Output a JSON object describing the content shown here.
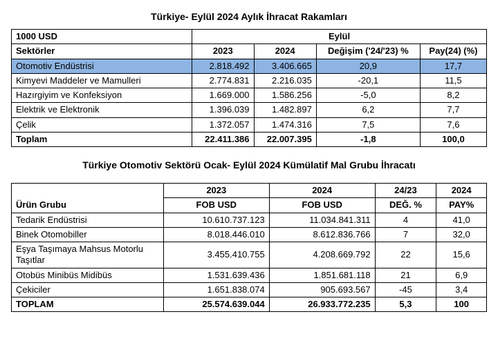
{
  "table1": {
    "title": "Türkiye- Eylül 2024 Aylık İhracat Rakamları",
    "unit_label": "1000 USD",
    "month_header": "Eylül",
    "sector_label": "Sektörler",
    "col_2023": "2023",
    "col_2024": "2024",
    "col_change": "Değişim ('24/'23) %",
    "col_share": "Pay(24) (%)",
    "rows": [
      {
        "name": "Otomotiv Endüstrisi",
        "v2023": "2.818.492",
        "v2024": "3.406.665",
        "chg": "20,9",
        "share": "17,7",
        "highlight": true
      },
      {
        "name": "Kimyevi Maddeler ve Mamulleri",
        "v2023": "2.774.831",
        "v2024": "2.216.035",
        "chg": "-20,1",
        "share": "11,5"
      },
      {
        "name": "Hazırgiyim ve Konfeksiyon",
        "v2023": "1.669.000",
        "v2024": "1.586.256",
        "chg": "-5,0",
        "share": "8,2"
      },
      {
        "name": "Elektrik ve Elektronik",
        "v2023": "1.396.039",
        "v2024": "1.482.897",
        "chg": "6,2",
        "share": "7,7"
      },
      {
        "name": "Çelik",
        "v2023": "1.372.057",
        "v2024": "1.474.316",
        "chg": "7,5",
        "share": "7,6"
      }
    ],
    "total": {
      "name": "Toplam",
      "v2023": "22.411.386",
      "v2024": "22.007.395",
      "chg": "-1,8",
      "share": "100,0"
    }
  },
  "table2": {
    "title": "Türkiye Otomotiv Sektörü Ocak- Eylül 2024 Kümülatif Mal Grubu İhracatı",
    "group_label": "Ürün Grubu",
    "col_2023_top": "2023",
    "col_2023_sub": "FOB USD",
    "col_2024_top": "2024",
    "col_2024_sub": "FOB USD",
    "col_change_top": "24/23",
    "col_change_sub": "DEĞ. %",
    "col_share_top": "2024",
    "col_share_sub": "PAY%",
    "rows": [
      {
        "name": "Tedarik Endüstrisi",
        "v2023": "10.610.737.123",
        "v2024": "11.034.841.311",
        "chg": "4",
        "share": "41,0"
      },
      {
        "name": "Binek Otomobiller",
        "v2023": "8.018.446.010",
        "v2024": "8.612.836.766",
        "chg": "7",
        "share": "32,0"
      },
      {
        "name": "Eşya Taşımaya Mahsus Motorlu Taşıtlar",
        "v2023": "3.455.410.755",
        "v2024": "4.208.669.792",
        "chg": "22",
        "share": "15,6"
      },
      {
        "name": "Otobüs Minibüs Midibüs",
        "v2023": "1.531.639.436",
        "v2024": "1.851.681.118",
        "chg": "21",
        "share": "6,9"
      },
      {
        "name": "Çekiciler",
        "v2023": "1.651.838.074",
        "v2024": "905.693.567",
        "chg": "-45",
        "share": "3,4"
      }
    ],
    "total": {
      "name": "TOPLAM",
      "v2023": "25.574.639.044",
      "v2024": "26.933.772.235",
      "chg": "5,3",
      "share": "100"
    }
  }
}
